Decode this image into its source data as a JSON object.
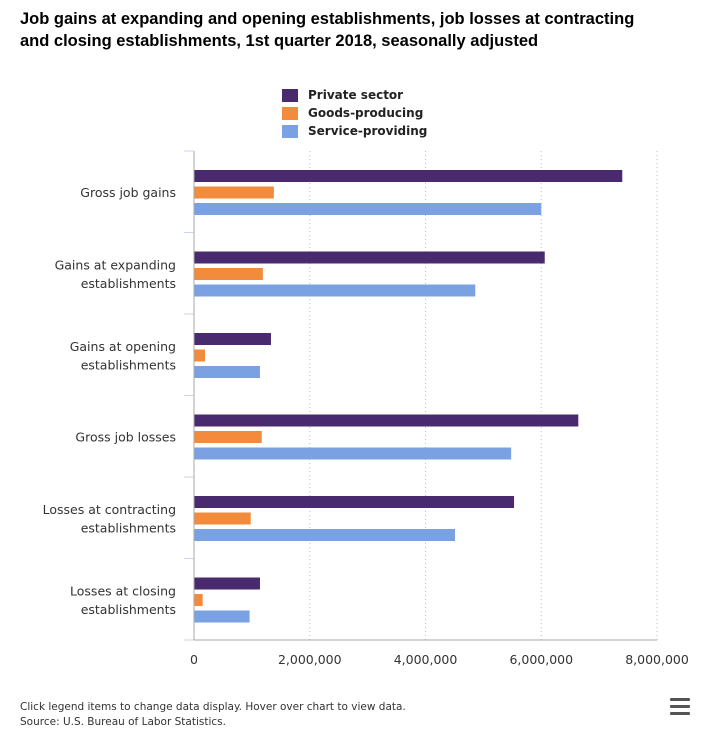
{
  "chart_data": {
    "type": "bar",
    "orientation": "horizontal",
    "title": "Job gains at expanding and opening establishments, job losses at contracting and closing establishments, 1st quarter 2018, seasonally adjusted",
    "categories": [
      [
        "Gross job gains"
      ],
      [
        "Gains at expanding",
        "establishments"
      ],
      [
        "Gains at opening",
        "establishments"
      ],
      [
        "Gross job losses"
      ],
      [
        "Losses at contracting",
        "establishments"
      ],
      [
        "Losses at closing",
        "establishments"
      ]
    ],
    "series": [
      {
        "name": "Private sector",
        "color": "#4a2a6e",
        "values": [
          7400000,
          6060000,
          1330000,
          6640000,
          5530000,
          1140000
        ]
      },
      {
        "name": "Goods-producing",
        "color": "#f28c3c",
        "values": [
          1380000,
          1190000,
          190000,
          1170000,
          980000,
          150000
        ]
      },
      {
        "name": "Service-providing",
        "color": "#7aa2e3",
        "values": [
          6000000,
          4860000,
          1140000,
          5480000,
          4510000,
          960000
        ]
      }
    ],
    "xlim": [
      0,
      8000000
    ],
    "x_ticks": [
      "0",
      "2,000,000",
      "4,000,000",
      "6,000,000",
      "8,000,000"
    ],
    "grid": "vertical dotted",
    "legend_position": "top-center"
  },
  "footer": {
    "note": "Click legend items to change data display. Hover over chart to view data.",
    "source": "Source: U.S. Bureau of Labor Statistics."
  },
  "menu_icon": "hamburger-menu-icon"
}
